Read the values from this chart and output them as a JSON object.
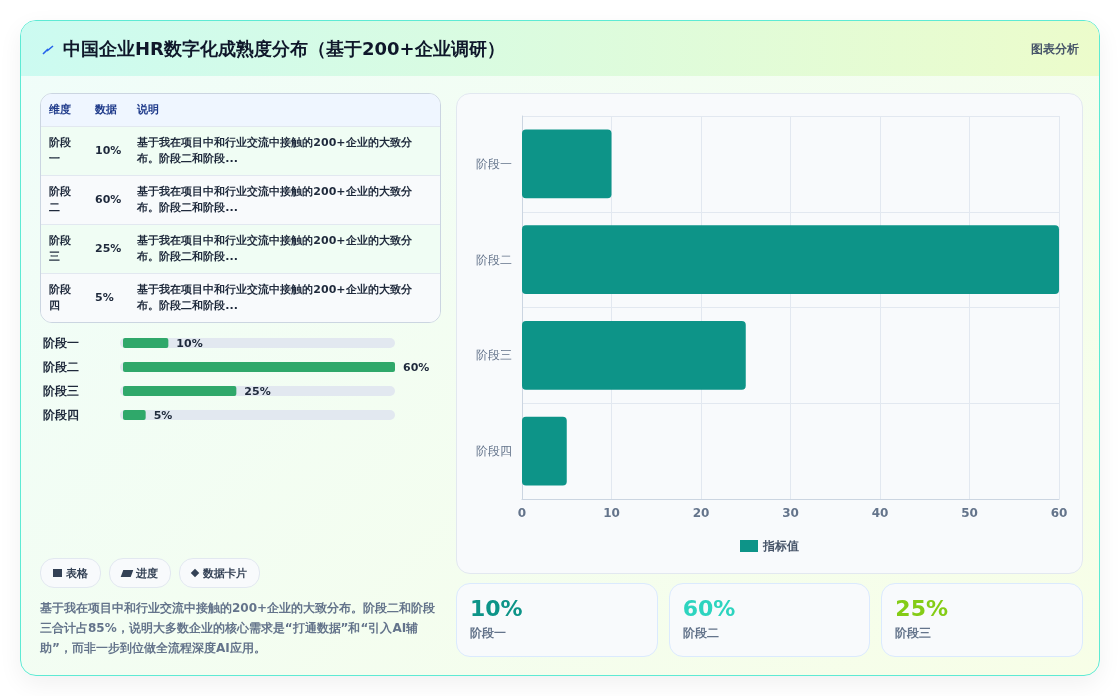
{
  "chart_data": [
    {
      "type": "other",
      "title": "中国企业HR数字化成熟度分布（基于200+企业调研）",
      "annotations": [
        "图表分析"
      ]
    },
    {
      "type": "other",
      "categories": [
        "维度",
        "数据",
        "说明"
      ],
      "y_categories": [
        "阶段一",
        "阶段二",
        "阶段三",
        "阶段四"
      ],
      "cell_labels": [
        [
          "10%",
          "基于我在项目中和行业交流中接触的200+企业的大致分布。阶段二和阶段..."
        ],
        [
          "60%",
          "基于我在项目中和行业交流中接触的200+企业的大致分布。阶段二和阶段..."
        ],
        [
          "25%",
          "基于我在项目中和行业交流中接触的200+企业的大致分布。阶段二和阶段..."
        ],
        [
          "5%",
          "基于我在项目中和行业交流中接触的200+企业的大致分布。阶段二和阶段..."
        ]
      ]
    },
    {
      "type": "bar",
      "orientation": "horizontal",
      "categories": [
        "阶段一",
        "阶段二",
        "阶段三",
        "阶段四"
      ],
      "values": [
        10,
        60,
        25,
        5
      ],
      "value_labels": [
        "10%",
        "60%",
        "25%",
        "5%"
      ],
      "color": "#2fa86a",
      "tick_labels": "y"
    },
    {
      "type": "other",
      "annotations": [
        "表格",
        "进度",
        "数据卡片",
        "基于我在项目中和行业交流中接触的200+企业的大致分布。阶段二和阶段三合计占85%，说明大多数企业的核心需求是“打通数据”和“引入AI辅助”，而非一步到位做全流程深度AI应用。"
      ]
    },
    {
      "type": "bar",
      "orientation": "horizontal",
      "categories": [
        "阶段一",
        "阶段二",
        "阶段三",
        "阶段四"
      ],
      "series": [
        {
          "name": "指标值",
          "color": "#0d9488",
          "values": [
            10,
            60,
            25,
            5
          ]
        }
      ],
      "xlim": [
        0,
        60
      ],
      "xticks": [
        0,
        10,
        20,
        30,
        40,
        50,
        60
      ],
      "grid": true,
      "legend": "bottom"
    },
    {
      "type": "other",
      "categories": [
        "阶段一",
        "阶段二",
        "阶段三"
      ],
      "value_labels": [
        "10%",
        "60%",
        "25%"
      ]
    }
  ]
}
